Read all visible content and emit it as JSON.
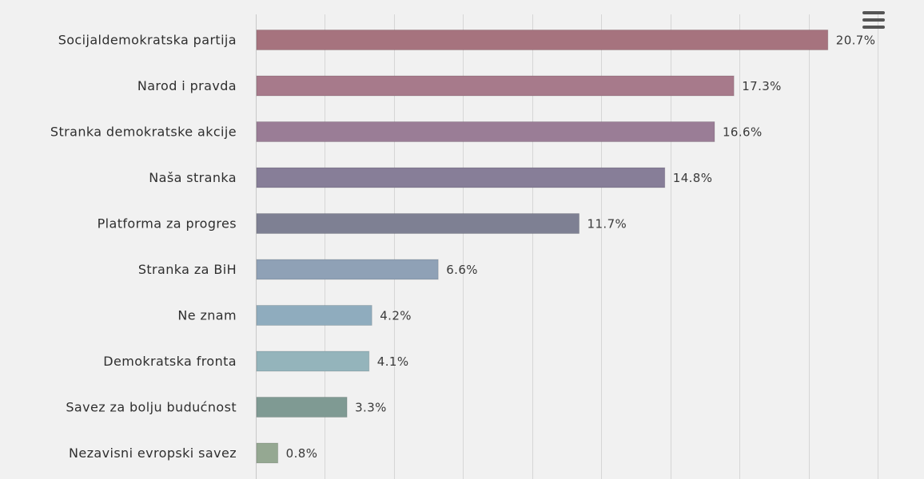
{
  "chart_data": {
    "type": "bar",
    "orientation": "horizontal",
    "title": "",
    "xlabel": "",
    "ylabel": "",
    "categories": [
      "Socijaldemokratska partija",
      "Narod i pravda",
      "Stranka demokratske akcije",
      "Naša stranka",
      "Platforma za progres",
      "Stranka za BiH",
      "Ne znam",
      "Demokratska fronta",
      "Savez za bolju budućnost",
      "Nezavisni evropski savez"
    ],
    "values": [
      20.7,
      17.3,
      16.6,
      14.8,
      11.7,
      6.6,
      4.2,
      4.1,
      3.3,
      0.8
    ],
    "data_labels": [
      "20.7%",
      "17.3%",
      "16.6%",
      "14.8%",
      "11.7%",
      "6.6%",
      "4.2%",
      "4.1%",
      "3.3%",
      "0.8%"
    ],
    "xlim": [
      0,
      22.5
    ],
    "grid_step": 2.5,
    "grid": true,
    "legend": "none",
    "colors": [
      "#a6737e",
      "#a77a8b",
      "#9a7d96",
      "#877e98",
      "#7e8093",
      "#8fa1b6",
      "#8facbe",
      "#94b4bb",
      "#7f9a93",
      "#95a892"
    ]
  },
  "toolbar": {
    "menu_icon": "hamburger-menu-icon"
  },
  "colors": {
    "background": "#f1f1f1",
    "gridline": "#d6d6d6",
    "axis": "#c8c8c8",
    "text": "#2f2f2f"
  }
}
